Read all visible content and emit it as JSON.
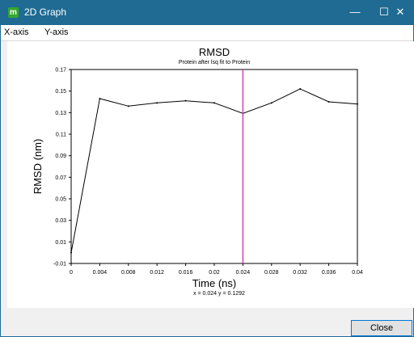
{
  "window": {
    "icon_glyph": "m",
    "title": "2D Graph",
    "minimize_glyph": "—",
    "maximize_glyph": "☐",
    "close_glyph": "✕"
  },
  "menu": {
    "items": [
      "X-axis",
      "Y-axis"
    ]
  },
  "chart_data": {
    "type": "line",
    "title": "RMSD",
    "subtitle": "Protein after lsq fit to Protein",
    "xlabel": "Time (ns)",
    "ylabel": "RMSD (nm)",
    "xlim": [
      0,
      0.04
    ],
    "ylim": [
      -0.01,
      0.17
    ],
    "xticks": [
      "0",
      "0.004",
      "0.008",
      "0.012",
      "0.016",
      "0.02",
      "0.024",
      "0.028",
      "0.032",
      "0.036",
      "0.04"
    ],
    "yticks": [
      "0.17",
      "0.15",
      "0.13",
      "0.11",
      "0.09",
      "0.07",
      "0.05",
      "0.03",
      "0.01",
      "-0.01"
    ],
    "x": [
      0,
      0.004,
      0.008,
      0.012,
      0.016,
      0.02,
      0.024,
      0.028,
      0.032,
      0.036,
      0.04
    ],
    "y": [
      0.0,
      0.143,
      0.136,
      0.139,
      0.141,
      0.139,
      0.1292,
      0.139,
      0.152,
      0.14,
      0.138
    ],
    "cursor_x": 0.024,
    "cursor_color": "#d040c0",
    "readout": "x = 0.024   y = 0.1292"
  },
  "footer": {
    "close_label": "Close"
  }
}
